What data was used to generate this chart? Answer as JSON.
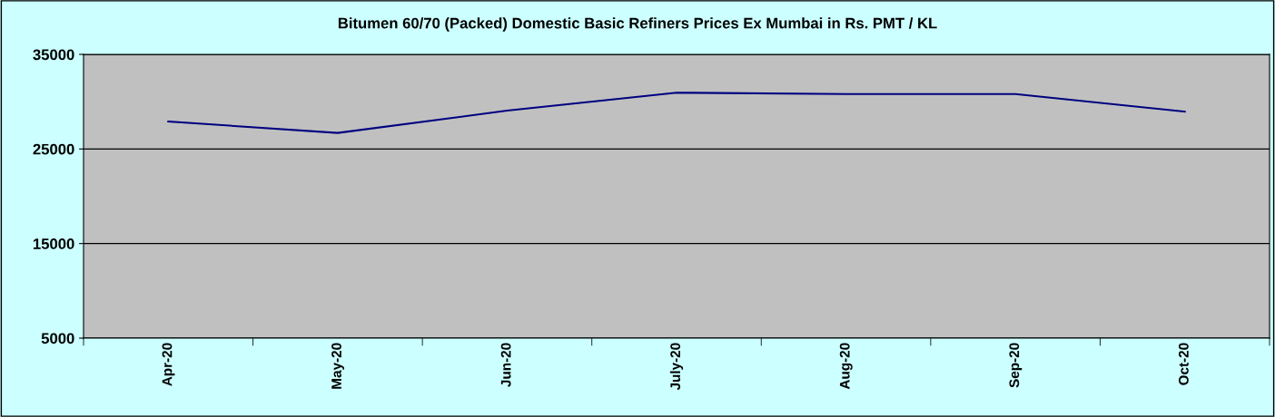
{
  "chart_data": {
    "type": "line",
    "title": "Bitumen 60/70 (Packed) Domestic Basic Refiners Prices Ex Mumbai in Rs. PMT / KL",
    "categories": [
      "Apr-20",
      "May-20",
      "Jun-20",
      "July-20",
      "Aug-20",
      "Sep-20",
      "Oct-20"
    ],
    "series": [
      {
        "color": "#000080",
        "values": [
          27900,
          26700,
          29050,
          30950,
          30800,
          30800,
          28950
        ]
      }
    ],
    "ylim": [
      5000,
      35000
    ],
    "yticks": [
      5000,
      15000,
      25000,
      35000
    ],
    "grid": "y",
    "legend": false,
    "marker": "none",
    "line_style": "solid"
  }
}
